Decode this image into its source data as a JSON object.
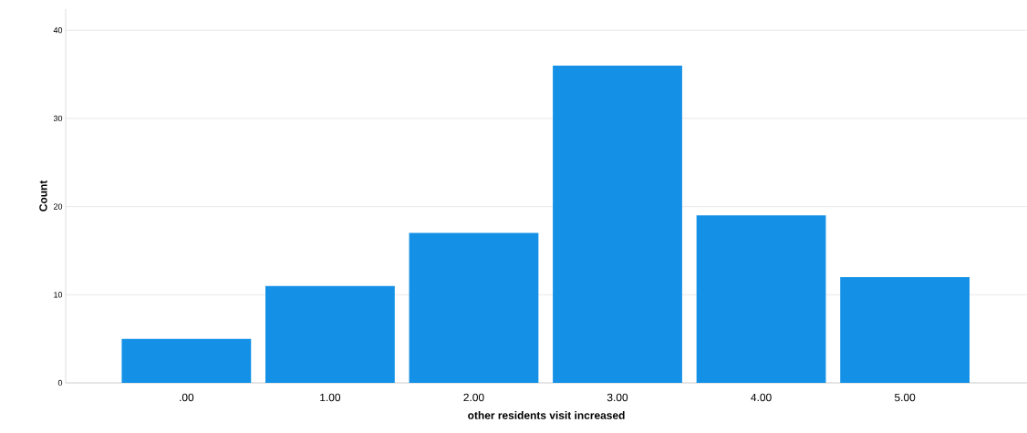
{
  "chart_data": {
    "type": "bar",
    "xlabel": "other residents visit increased",
    "ylabel": "Count",
    "categories": [
      ".00",
      "1.00",
      "2.00",
      "3.00",
      "4.00",
      "5.00"
    ],
    "values": [
      5,
      11,
      17,
      36,
      19,
      12
    ],
    "color": "#1491e6",
    "ylim": [
      0,
      42.4
    ],
    "yticks": [
      0,
      10,
      20,
      30,
      40
    ],
    "grid": "y"
  }
}
